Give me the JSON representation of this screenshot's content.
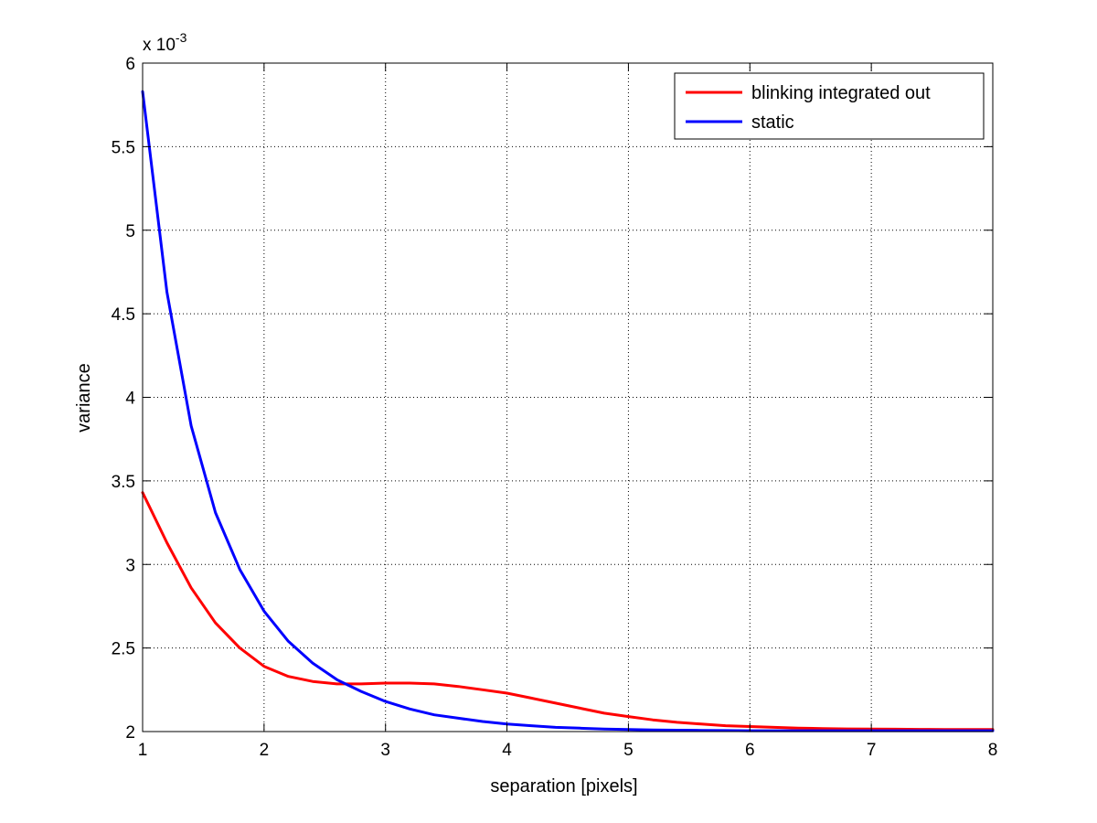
{
  "chart_data": {
    "type": "line",
    "title": "",
    "xlabel": "separation [pixels]",
    "ylabel": "variance",
    "xlim": [
      1,
      8
    ],
    "ylim": [
      2,
      6
    ],
    "y_scale_factor_base": "x 10",
    "y_scale_factor_exp": "-3",
    "xticks": [
      "1",
      "2",
      "3",
      "4",
      "5",
      "6",
      "7",
      "8"
    ],
    "yticks": [
      "2",
      "2.5",
      "3",
      "3.5",
      "4",
      "4.5",
      "5",
      "5.5",
      "6"
    ],
    "grid": true,
    "legend_position": "top-right",
    "series": [
      {
        "name": "blinking integrated out",
        "color": "#ff0000",
        "x": [
          1.0,
          1.2,
          1.4,
          1.6,
          1.8,
          2.0,
          2.2,
          2.4,
          2.6,
          2.8,
          3.0,
          3.2,
          3.4,
          3.6,
          3.8,
          4.0,
          4.2,
          4.4,
          4.6,
          4.8,
          5.0,
          5.2,
          5.4,
          5.6,
          5.8,
          6.0,
          6.2,
          6.4,
          6.6,
          6.8,
          7.0,
          7.2,
          7.4,
          7.6,
          7.8,
          8.0
        ],
        "y": [
          3.43,
          3.13,
          2.86,
          2.65,
          2.5,
          2.39,
          2.33,
          2.3,
          2.285,
          2.285,
          2.29,
          2.29,
          2.285,
          2.27,
          2.25,
          2.23,
          2.2,
          2.17,
          2.14,
          2.11,
          2.09,
          2.07,
          2.055,
          2.045,
          2.035,
          2.03,
          2.025,
          2.02,
          2.018,
          2.016,
          2.015,
          2.014,
          2.013,
          2.012,
          2.012,
          2.012
        ]
      },
      {
        "name": "static",
        "color": "#0000ff",
        "x": [
          1.0,
          1.2,
          1.4,
          1.6,
          1.8,
          2.0,
          2.2,
          2.4,
          2.6,
          2.8,
          3.0,
          3.2,
          3.4,
          3.6,
          3.8,
          4.0,
          4.2,
          4.4,
          4.6,
          4.8,
          5.0,
          5.2,
          5.4,
          5.6,
          5.8,
          6.0,
          6.2,
          6.4,
          6.6,
          6.8,
          7.0,
          7.2,
          7.4,
          7.6,
          7.8,
          8.0
        ],
        "y": [
          5.83,
          4.63,
          3.83,
          3.31,
          2.97,
          2.72,
          2.54,
          2.41,
          2.31,
          2.24,
          2.18,
          2.135,
          2.1,
          2.08,
          2.06,
          2.045,
          2.035,
          2.025,
          2.02,
          2.015,
          2.012,
          2.01,
          2.008,
          2.007,
          2.006,
          2.005,
          2.005,
          2.005,
          2.005,
          2.005,
          2.005,
          2.005,
          2.005,
          2.005,
          2.005,
          2.005
        ]
      }
    ]
  }
}
